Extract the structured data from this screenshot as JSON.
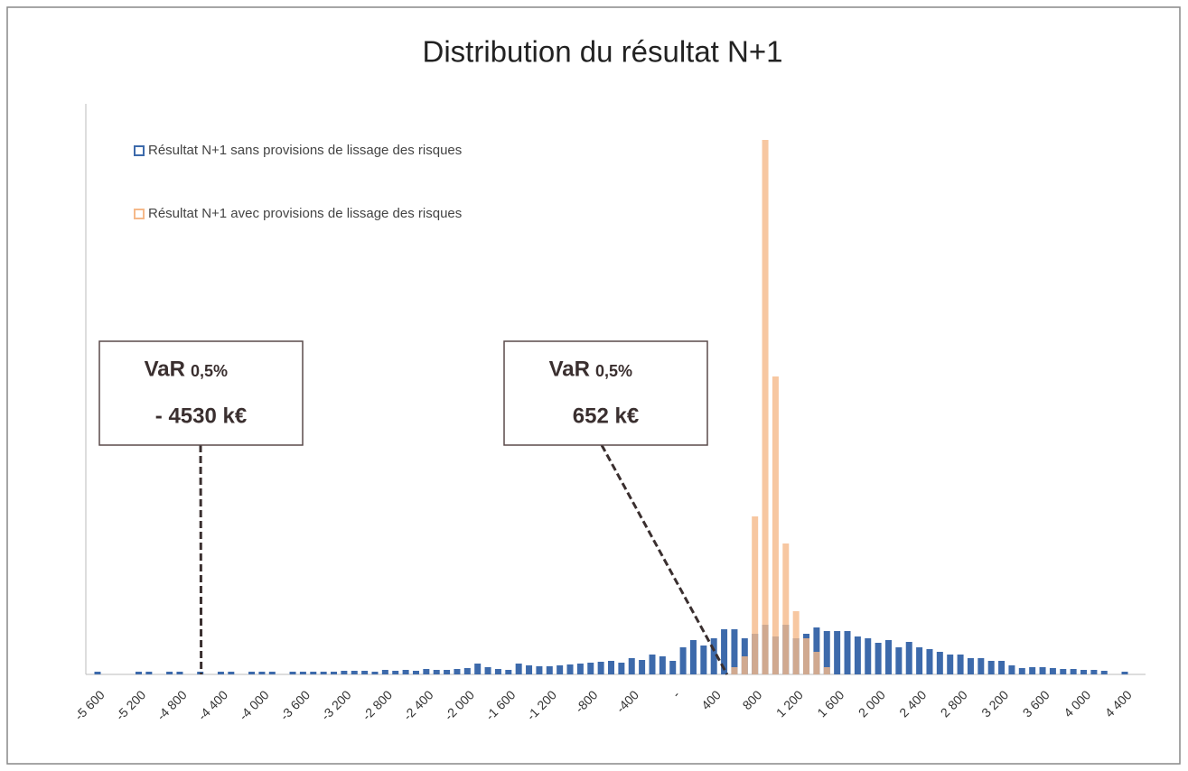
{
  "chart_data": {
    "type": "bar",
    "title": "Distribution du résultat N+1",
    "categories": [
      "-5 600",
      null,
      null,
      null,
      "-5 200",
      null,
      null,
      null,
      "-4 800",
      null,
      null,
      null,
      "-4 400",
      null,
      null,
      null,
      "-4 000",
      null,
      null,
      null,
      "-3 600",
      null,
      null,
      null,
      "-3 200",
      null,
      null,
      null,
      "-2 800",
      null,
      null,
      null,
      "-2 400",
      null,
      null,
      null,
      "-2 000",
      null,
      null,
      null,
      "-1 600",
      null,
      null,
      null,
      "-1 200",
      null,
      null,
      null,
      "-800",
      null,
      null,
      null,
      "-400",
      null,
      null,
      null,
      "-",
      null,
      null,
      null,
      "400",
      null,
      null,
      null,
      "800",
      null,
      null,
      null,
      "1 200",
      null,
      null,
      null,
      "1 600",
      null,
      null,
      null,
      "2 000",
      null,
      null,
      null,
      "2 400",
      null,
      null,
      null,
      "2 800",
      null,
      null,
      null,
      "3 200",
      null,
      null,
      null,
      "3 600",
      null,
      null,
      null,
      "4 000",
      null,
      null,
      null,
      "4 400"
    ],
    "x_first": -5600,
    "x_step": 100,
    "series": [
      {
        "name": "Résultat N+1 sans provisions de lissage des risques",
        "color": "#3d6aab",
        "values": [
          3,
          0,
          0,
          0,
          3,
          3,
          0,
          3,
          3,
          0,
          3,
          0,
          3,
          3,
          0,
          3,
          3,
          3,
          0,
          3,
          3,
          3,
          3,
          3,
          4,
          4,
          4,
          3,
          5,
          4,
          5,
          4,
          6,
          5,
          5,
          6,
          7,
          12,
          8,
          6,
          5,
          12,
          10,
          9,
          9,
          10,
          11,
          12,
          13,
          14,
          15,
          13,
          18,
          16,
          22,
          20,
          15,
          30,
          38,
          32,
          40,
          50,
          50,
          40,
          45,
          55,
          42,
          55,
          40,
          45,
          52,
          48,
          48,
          48,
          42,
          40,
          35,
          38,
          30,
          36,
          30,
          28,
          25,
          22,
          22,
          18,
          18,
          15,
          15,
          10,
          7,
          8,
          8,
          7,
          6,
          6,
          5,
          5,
          4,
          0,
          3
        ]
      },
      {
        "name": "Résultat N+1 avec provisions de lissage des risques",
        "color": "#f5b98a",
        "values": [
          0,
          0,
          0,
          0,
          0,
          0,
          0,
          0,
          0,
          0,
          0,
          0,
          0,
          0,
          0,
          0,
          0,
          0,
          0,
          0,
          0,
          0,
          0,
          0,
          0,
          0,
          0,
          0,
          0,
          0,
          0,
          0,
          0,
          0,
          0,
          0,
          0,
          0,
          0,
          0,
          0,
          0,
          0,
          0,
          0,
          0,
          0,
          0,
          0,
          0,
          0,
          0,
          0,
          0,
          0,
          0,
          0,
          0,
          0,
          0,
          0,
          0,
          8,
          20,
          175,
          592,
          330,
          145,
          70,
          40,
          25,
          8,
          0,
          0,
          0,
          0,
          0,
          0,
          0,
          0,
          0,
          0,
          0,
          0,
          0,
          0,
          0,
          0,
          0,
          0,
          0,
          0,
          0,
          0,
          0,
          0,
          0,
          0,
          0,
          0,
          0
        ]
      }
    ],
    "ylim": [
      0,
      632
    ],
    "legend": "top-left",
    "annotations": [
      {
        "title": "VaR",
        "sub": "0,5%",
        "value": -4530,
        "label": "- 4530 k€"
      },
      {
        "title": "VaR",
        "sub": "0,5%",
        "value": 652,
        "label": "652 k€"
      }
    ]
  }
}
